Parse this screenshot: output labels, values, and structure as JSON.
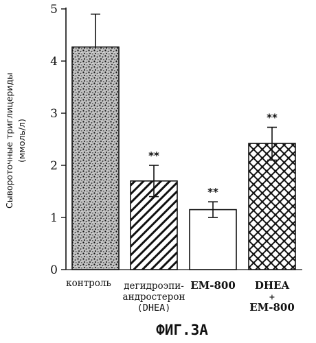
{
  "chart_data": {
    "type": "bar",
    "ylabel_line1": "Сывороточные триглицериды",
    "ylabel_line2": "(ммоль/л)",
    "ylim": [
      0,
      5
    ],
    "yticks": [
      "0",
      "1",
      "2",
      "3",
      "4",
      "5"
    ],
    "grid": false,
    "categories": [
      {
        "lines": [
          "контроль"
        ],
        "pattern": "stipple",
        "significance": ""
      },
      {
        "lines": [
          "дегидроэпи-",
          "андростерон",
          "(DHEA)"
        ],
        "pattern": "diagonal",
        "significance": "**"
      },
      {
        "lines": [
          "EM-800"
        ],
        "pattern": "none",
        "significance": "**"
      },
      {
        "lines": [
          "DHEA",
          "+",
          "EM-800"
        ],
        "pattern": "crosshatch",
        "significance": "**"
      }
    ],
    "values": [
      4.27,
      1.7,
      1.15,
      2.42
    ],
    "error_upper": [
      4.9,
      2.0,
      1.3,
      2.73
    ],
    "error_lower": [
      4.27,
      1.4,
      1.0,
      2.1
    ]
  },
  "figure_caption": "ФИГ.3А"
}
